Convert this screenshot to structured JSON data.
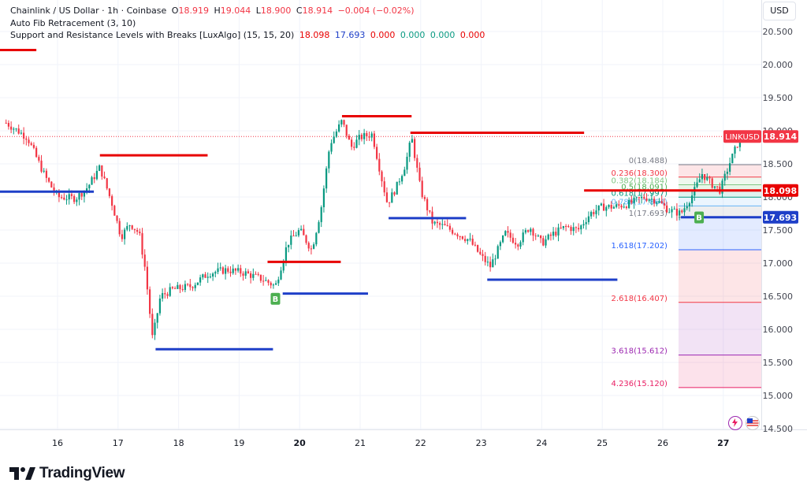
{
  "header": {
    "symbol": "Chainlink / US Dollar · 1h · Coinbase",
    "o_label": "O",
    "o_value": "18.919",
    "h_label": "H",
    "h_value": "19.044",
    "l_label": "L",
    "l_value": "18.900",
    "c_label": "C",
    "c_value": "18.914",
    "change": "−0.004 (−0.02%)",
    "indicator1": "Auto Fib Retracement (3, 10)",
    "indicator2": "Support and Resistance Levels with Breaks [LuxAlgo] (15, 15, 20)",
    "ind2_values": [
      "18.098",
      "17.693",
      "0.000",
      "0.000",
      "0.000",
      "0.000"
    ]
  },
  "currency_button": "USD",
  "branding": "TradingView",
  "colors": {
    "up": "#089981",
    "down": "#f23645",
    "resistance": "#e80000",
    "support": "#1e3fc8",
    "text": "#131722",
    "axis_text": "#434651"
  },
  "chart_data": {
    "type": "candlestick",
    "symbol": "LINKUSD",
    "timeframe": "1h",
    "y_axis": {
      "ylim": [
        14.35,
        20.9
      ],
      "ticks": [
        "20.500",
        "20.000",
        "19.500",
        "19.000",
        "18.500",
        "18.000",
        "17.500",
        "17.000",
        "16.500",
        "16.000",
        "15.500",
        "15.000",
        "14.500"
      ]
    },
    "x_axis": {
      "ticks": [
        {
          "label": "16",
          "day": 16
        },
        {
          "label": "17",
          "day": 17
        },
        {
          "label": "18",
          "day": 18
        },
        {
          "label": "19",
          "day": 19
        },
        {
          "label": "20",
          "day": 20,
          "bold": true
        },
        {
          "label": "21",
          "day": 21
        },
        {
          "label": "22",
          "day": 22
        },
        {
          "label": "23",
          "day": 23
        },
        {
          "label": "24",
          "day": 24
        },
        {
          "label": "25",
          "day": 25
        },
        {
          "label": "26",
          "day": 26
        },
        {
          "label": "27",
          "day": 27,
          "bold": true
        }
      ]
    },
    "last_price": {
      "label": "LINKUSD",
      "value": "18.914",
      "y": 18.914
    },
    "price_path": [
      [
        15.15,
        19.12
      ],
      [
        15.5,
        18.9
      ],
      [
        15.8,
        18.3
      ],
      [
        16.0,
        18.0
      ],
      [
        16.3,
        17.98
      ],
      [
        16.5,
        18.15
      ],
      [
        16.7,
        18.45
      ],
      [
        16.9,
        17.9
      ],
      [
        17.05,
        17.4
      ],
      [
        17.2,
        17.6
      ],
      [
        17.35,
        17.45
      ],
      [
        17.45,
        16.9
      ],
      [
        17.57,
        15.85
      ],
      [
        17.7,
        16.5
      ],
      [
        17.9,
        16.6
      ],
      [
        18.2,
        16.65
      ],
      [
        18.5,
        16.85
      ],
      [
        18.8,
        16.9
      ],
      [
        19.1,
        16.85
      ],
      [
        19.4,
        16.75
      ],
      [
        19.6,
        16.65
      ],
      [
        19.8,
        17.3
      ],
      [
        20.0,
        17.5
      ],
      [
        20.2,
        17.2
      ],
      [
        20.35,
        17.8
      ],
      [
        20.5,
        18.8
      ],
      [
        20.7,
        19.15
      ],
      [
        20.85,
        18.75
      ],
      [
        21.0,
        18.9
      ],
      [
        21.2,
        18.95
      ],
      [
        21.35,
        18.3
      ],
      [
        21.45,
        17.9
      ],
      [
        21.6,
        18.15
      ],
      [
        21.75,
        18.5
      ],
      [
        21.85,
        18.9
      ],
      [
        22.0,
        18.1
      ],
      [
        22.2,
        17.6
      ],
      [
        22.4,
        17.55
      ],
      [
        22.6,
        17.45
      ],
      [
        22.8,
        17.35
      ],
      [
        23.0,
        17.1
      ],
      [
        23.15,
        16.95
      ],
      [
        23.4,
        17.45
      ],
      [
        23.6,
        17.3
      ],
      [
        23.8,
        17.55
      ],
      [
        24.0,
        17.3
      ],
      [
        24.2,
        17.45
      ],
      [
        24.4,
        17.55
      ],
      [
        24.6,
        17.5
      ],
      [
        24.8,
        17.75
      ],
      [
        25.0,
        17.85
      ],
      [
        25.2,
        17.85
      ],
      [
        25.45,
        17.9
      ],
      [
        25.7,
        18.0
      ],
      [
        25.9,
        17.95
      ],
      [
        26.1,
        17.8
      ],
      [
        26.3,
        17.75
      ],
      [
        26.5,
        18.05
      ],
      [
        26.65,
        18.35
      ],
      [
        26.8,
        18.2
      ],
      [
        26.95,
        18.1
      ],
      [
        27.1,
        18.5
      ],
      [
        27.3,
        18.95
      ],
      [
        27.4,
        18.91
      ]
    ],
    "resistance_lines": [
      {
        "day_from": 15.0,
        "day_to": 15.65,
        "price": 20.22
      },
      {
        "day_from": 16.7,
        "day_to": 18.48,
        "price": 18.63
      },
      {
        "day_from": 19.47,
        "day_to": 20.68,
        "price": 17.02
      },
      {
        "day_from": 20.7,
        "day_to": 21.85,
        "price": 19.22
      },
      {
        "day_from": 21.83,
        "day_to": 24.7,
        "price": 18.97
      },
      {
        "day_from": 24.7,
        "day_to": 28.0,
        "price": 18.098
      }
    ],
    "support_lines": [
      {
        "day_from": 15.0,
        "day_to": 16.6,
        "price": 18.08
      },
      {
        "day_from": 17.62,
        "day_to": 19.56,
        "price": 15.7
      },
      {
        "day_from": 19.72,
        "day_to": 21.13,
        "price": 16.54
      },
      {
        "day_from": 21.47,
        "day_to": 22.75,
        "price": 17.68
      },
      {
        "day_from": 23.1,
        "day_to": 25.25,
        "price": 16.75
      },
      {
        "day_from": 26.3,
        "day_to": 28.0,
        "price": 17.693
      }
    ],
    "price_badges": [
      {
        "value": "18.098",
        "y": 18.098,
        "color": "#e80000"
      },
      {
        "value": "17.693",
        "y": 17.693,
        "color": "#1e3fc8"
      }
    ],
    "break_markers": [
      {
        "label": "B",
        "day": 19.6,
        "price": 16.55
      },
      {
        "label": "B",
        "day": 26.6,
        "price": 17.78
      }
    ],
    "fib_levels": [
      {
        "label": "0(18.488)",
        "price": 18.488,
        "color": "#787b86"
      },
      {
        "label": "0.236(18.300)",
        "price": 18.3,
        "color": "#f23645"
      },
      {
        "label": "0.382(18.184)",
        "price": 18.184,
        "color": "#81c784"
      },
      {
        "label": "0.5(18.091)",
        "price": 18.091,
        "color": "#4caf50"
      },
      {
        "label": "0.618(17.997)",
        "price": 17.997,
        "color": "#089981"
      },
      {
        "label": "0.786(17.864)",
        "price": 17.864,
        "color": "#64b5f6"
      },
      {
        "label": "1(17.693)",
        "price": 17.693,
        "color": "#787b86"
      },
      {
        "label": "1.618(17.202)",
        "price": 17.202,
        "color": "#2962ff"
      },
      {
        "label": "2.618(16.407)",
        "price": 16.407,
        "color": "#f23645"
      },
      {
        "label": "3.618(15.612)",
        "price": 15.612,
        "color": "#9c27b0"
      },
      {
        "label": "4.236(15.120)",
        "price": 15.12,
        "color": "#e91e63"
      }
    ],
    "fib_day_from": 26.26,
    "fib_day_to": 28.0
  }
}
